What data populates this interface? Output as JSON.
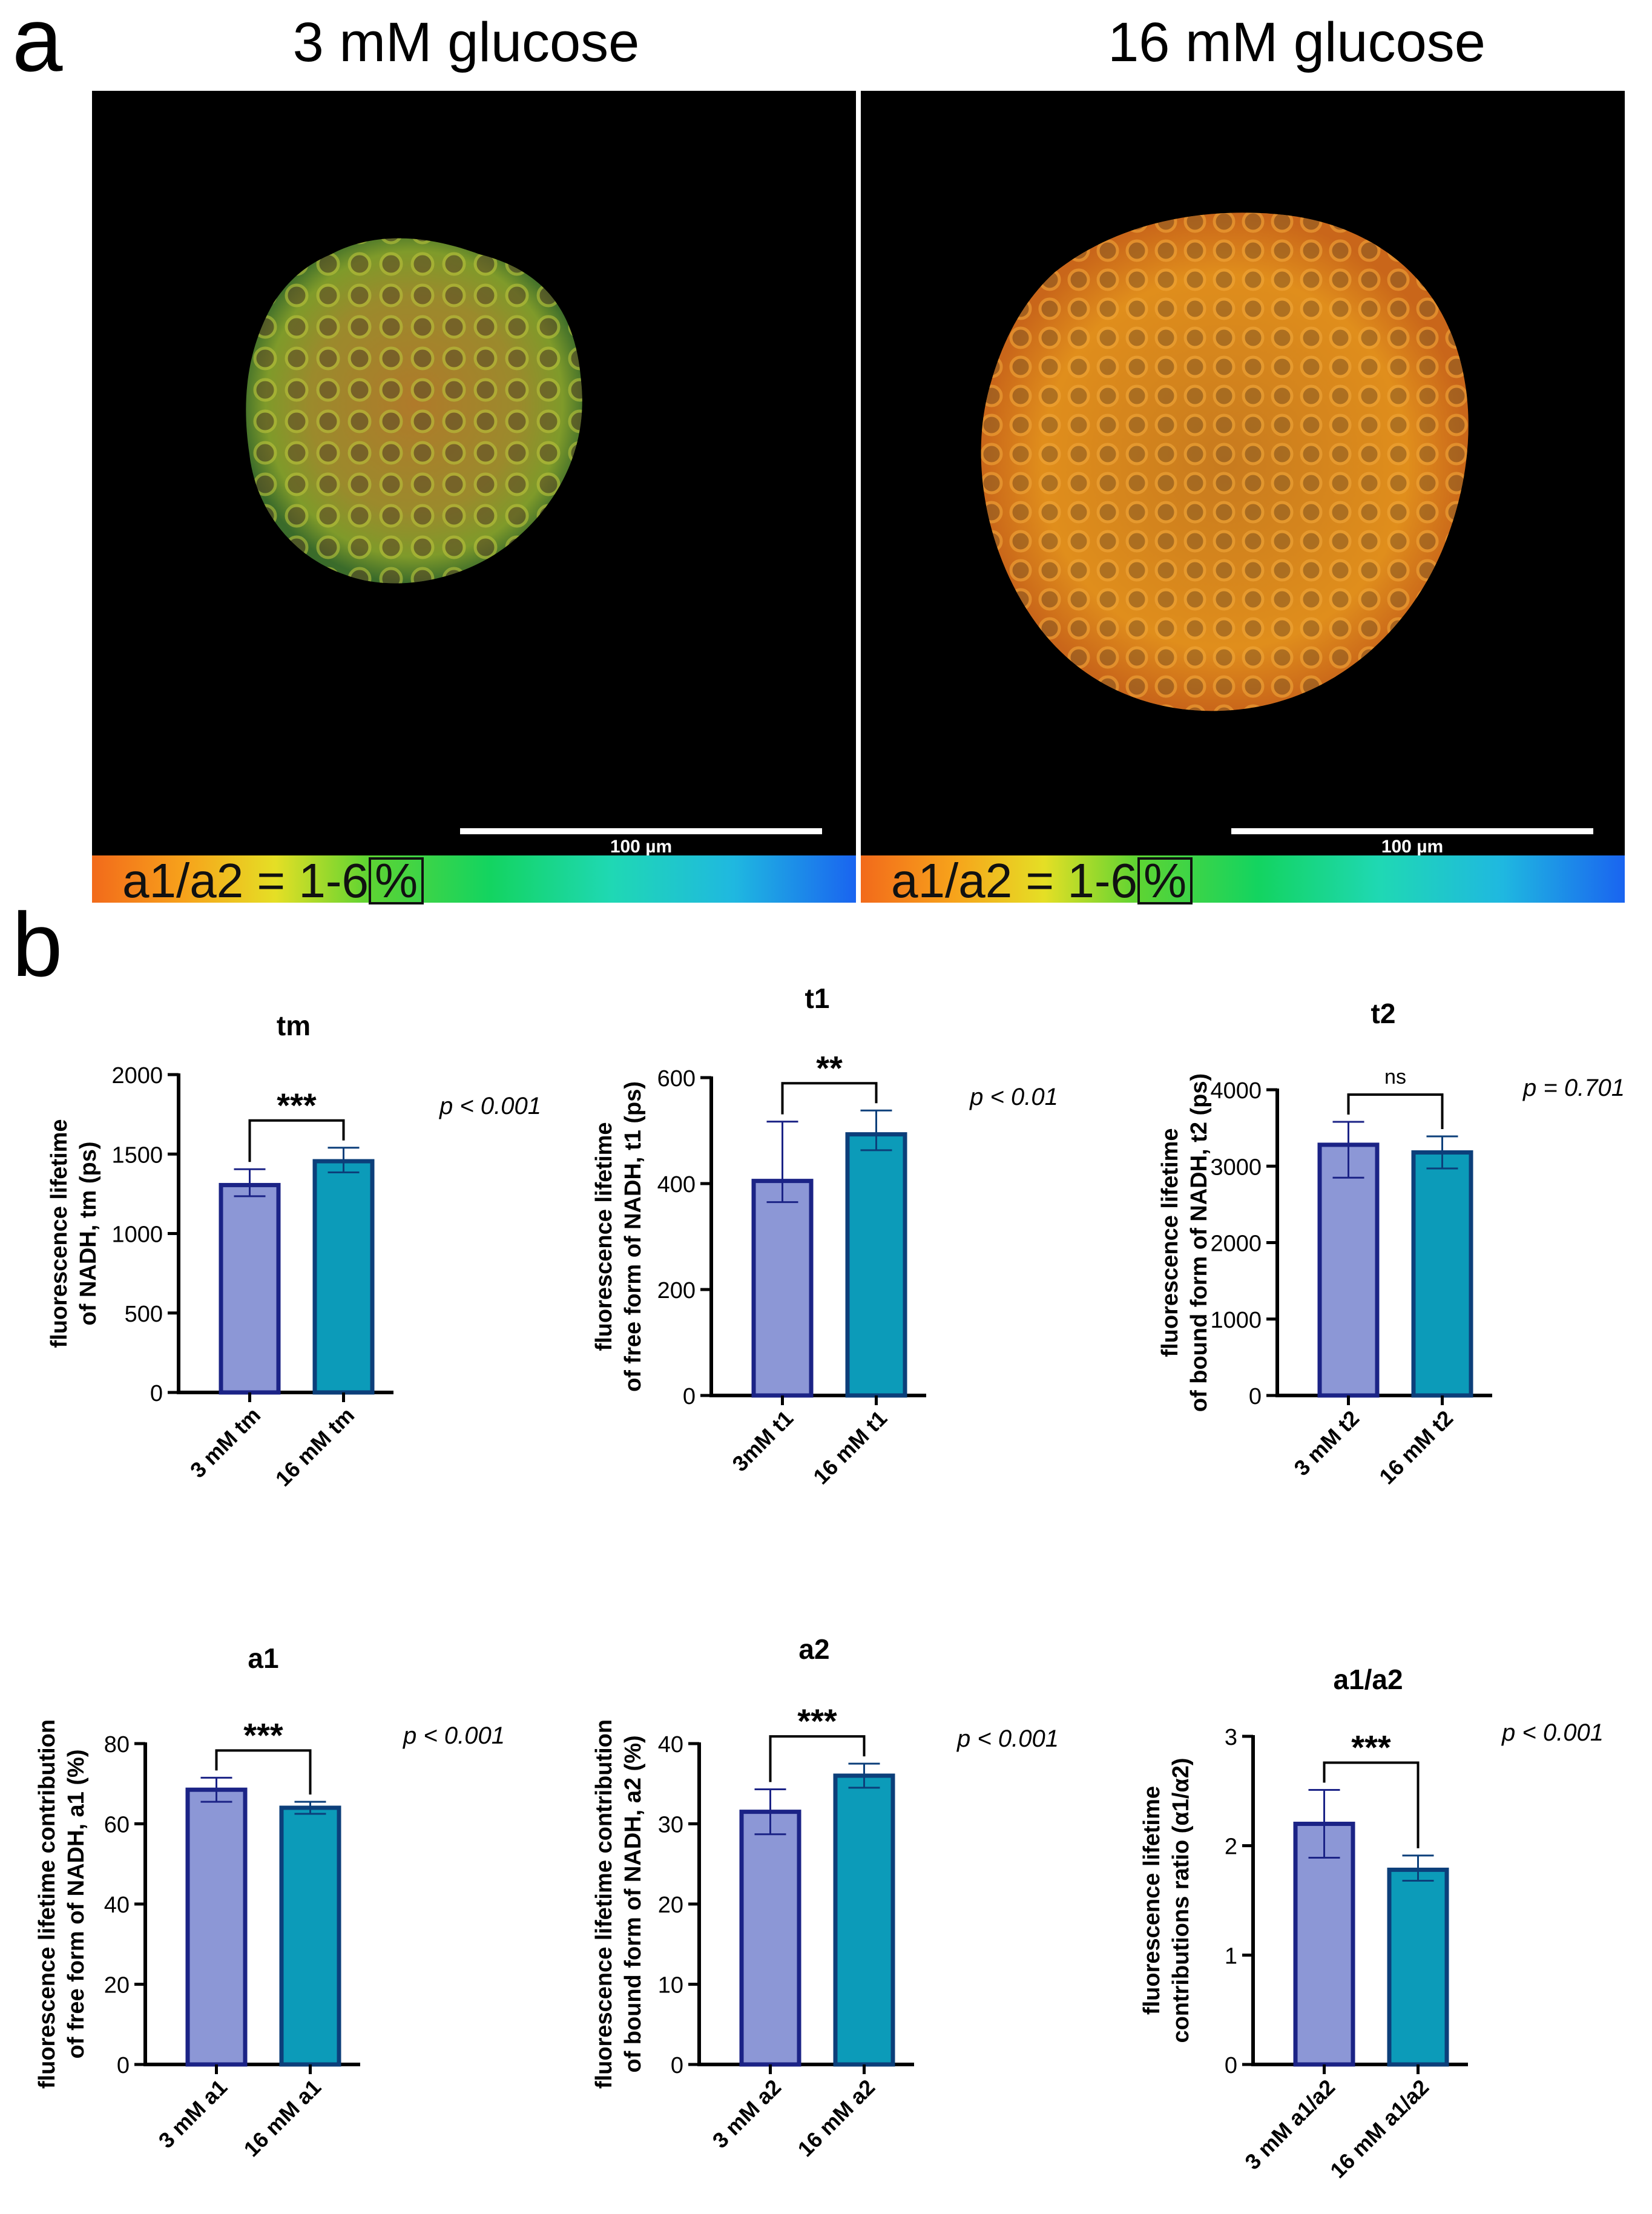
{
  "panel_labels": {
    "a": "a",
    "b": "b"
  },
  "panel_a": {
    "left": {
      "title": "3 mM glucose",
      "scale_label": "100 µm",
      "colorbar_text": "a1/a2 = 1-6",
      "colorbar_unit": "%"
    },
    "right": {
      "title": "16 mM glucose",
      "scale_label": "100 µm",
      "colorbar_text": "a1/a2 = 1-6",
      "colorbar_unit": "%"
    }
  },
  "colors": {
    "bar1_fill": "#8c97d6",
    "bar1_edge": "#1b2386",
    "bar2_fill": "#0c9bb9",
    "bar2_edge": "#0c3f7a",
    "err1": "#1b2386",
    "err2": "#0c3f7a"
  },
  "chart_data": [
    {
      "id": "tm",
      "type": "bar",
      "title": "tm",
      "ylabel_lines": [
        "fluorescence lifetime",
        "of NADH, tm (ps)"
      ],
      "categories": [
        "3 mM tm",
        "16 mM tm"
      ],
      "values": [
        1305,
        1455
      ],
      "errors_upper": [
        100,
        85
      ],
      "errors_lower": [
        70,
        70
      ],
      "ylim": [
        0,
        2000
      ],
      "yticks": [
        0,
        500,
        1000,
        1500,
        2000
      ],
      "yticklabels": [
        "0",
        "500",
        "1000",
        "1500",
        "2000"
      ],
      "significance": "***",
      "pvalue": "p < 0.001"
    },
    {
      "id": "t1",
      "type": "bar",
      "title": "t1",
      "ylabel_lines": [
        "fluorescence lifetime",
        "of free form of NADH, t1 (ps)"
      ],
      "categories": [
        "3mM t1",
        "16 mM t1"
      ],
      "values": [
        405,
        493
      ],
      "errors_upper": [
        112,
        45
      ],
      "errors_lower": [
        40,
        30
      ],
      "ylim": [
        0,
        600
      ],
      "yticks": [
        0,
        200,
        400,
        600
      ],
      "yticklabels": [
        "0",
        "200",
        "400",
        "600"
      ],
      "significance": "**",
      "pvalue": "p < 0.01"
    },
    {
      "id": "t2",
      "type": "bar",
      "title": "t2",
      "ylabel_lines": [
        "fluorescence lifetime",
        "of bound form of NADH, t2 (ps)"
      ],
      "categories": [
        "3 mM t2",
        "16 mM t2"
      ],
      "values": [
        3280,
        3180
      ],
      "errors_upper": [
        300,
        210
      ],
      "errors_lower": [
        430,
        210
      ],
      "ylim": [
        0,
        4000
      ],
      "yticks": [
        0,
        1000,
        2000,
        3000,
        4000
      ],
      "yticklabels": [
        "0",
        "1000",
        "2000",
        "3000",
        "4000"
      ],
      "significance": "ns",
      "pvalue": "p = 0.701"
    },
    {
      "id": "a1",
      "type": "bar",
      "title": "a1",
      "ylabel_lines": [
        "fluorescence lifetime contribution",
        "of free form of NADH, a1 (%)"
      ],
      "categories": [
        "3 mM a1",
        "16 mM a1"
      ],
      "values": [
        68.5,
        64
      ],
      "errors_upper": [
        3,
        1.5
      ],
      "errors_lower": [
        3,
        1.5
      ],
      "ylim": [
        0,
        80
      ],
      "yticks": [
        0,
        20,
        40,
        60,
        80
      ],
      "yticklabels": [
        "0",
        "20",
        "40",
        "60",
        "80"
      ],
      "significance": "***",
      "pvalue": "p < 0.001"
    },
    {
      "id": "a2",
      "type": "bar",
      "title": "a2",
      "ylabel_lines": [
        "fluorescence lifetime contribution",
        "of bound form of NADH, a2 (%)"
      ],
      "categories": [
        "3 mM a2",
        "16 mM a2"
      ],
      "values": [
        31.5,
        36
      ],
      "errors_upper": [
        2.8,
        1.5
      ],
      "errors_lower": [
        2.8,
        1.5
      ],
      "ylim": [
        0,
        40
      ],
      "yticks": [
        0,
        10,
        20,
        30,
        40
      ],
      "yticklabels": [
        "0",
        "10",
        "20",
        "30",
        "40"
      ],
      "significance": "***",
      "pvalue": "p < 0.001"
    },
    {
      "id": "a1a2",
      "type": "bar",
      "title": "a1/a2",
      "ylabel_lines": [
        "fluorescence lifetime",
        "contributions ratio (α1/α2)"
      ],
      "categories": [
        "3 mM a1/a2",
        "16 mM a1/a2"
      ],
      "values": [
        2.2,
        1.78
      ],
      "errors_upper": [
        0.31,
        0.13
      ],
      "errors_lower": [
        0.31,
        0.1
      ],
      "ylim": [
        0,
        3
      ],
      "yticks": [
        0,
        1,
        2,
        3
      ],
      "yticklabels": [
        "0",
        "1",
        "2",
        "3"
      ],
      "significance": "***",
      "pvalue": "p < 0.001"
    }
  ]
}
